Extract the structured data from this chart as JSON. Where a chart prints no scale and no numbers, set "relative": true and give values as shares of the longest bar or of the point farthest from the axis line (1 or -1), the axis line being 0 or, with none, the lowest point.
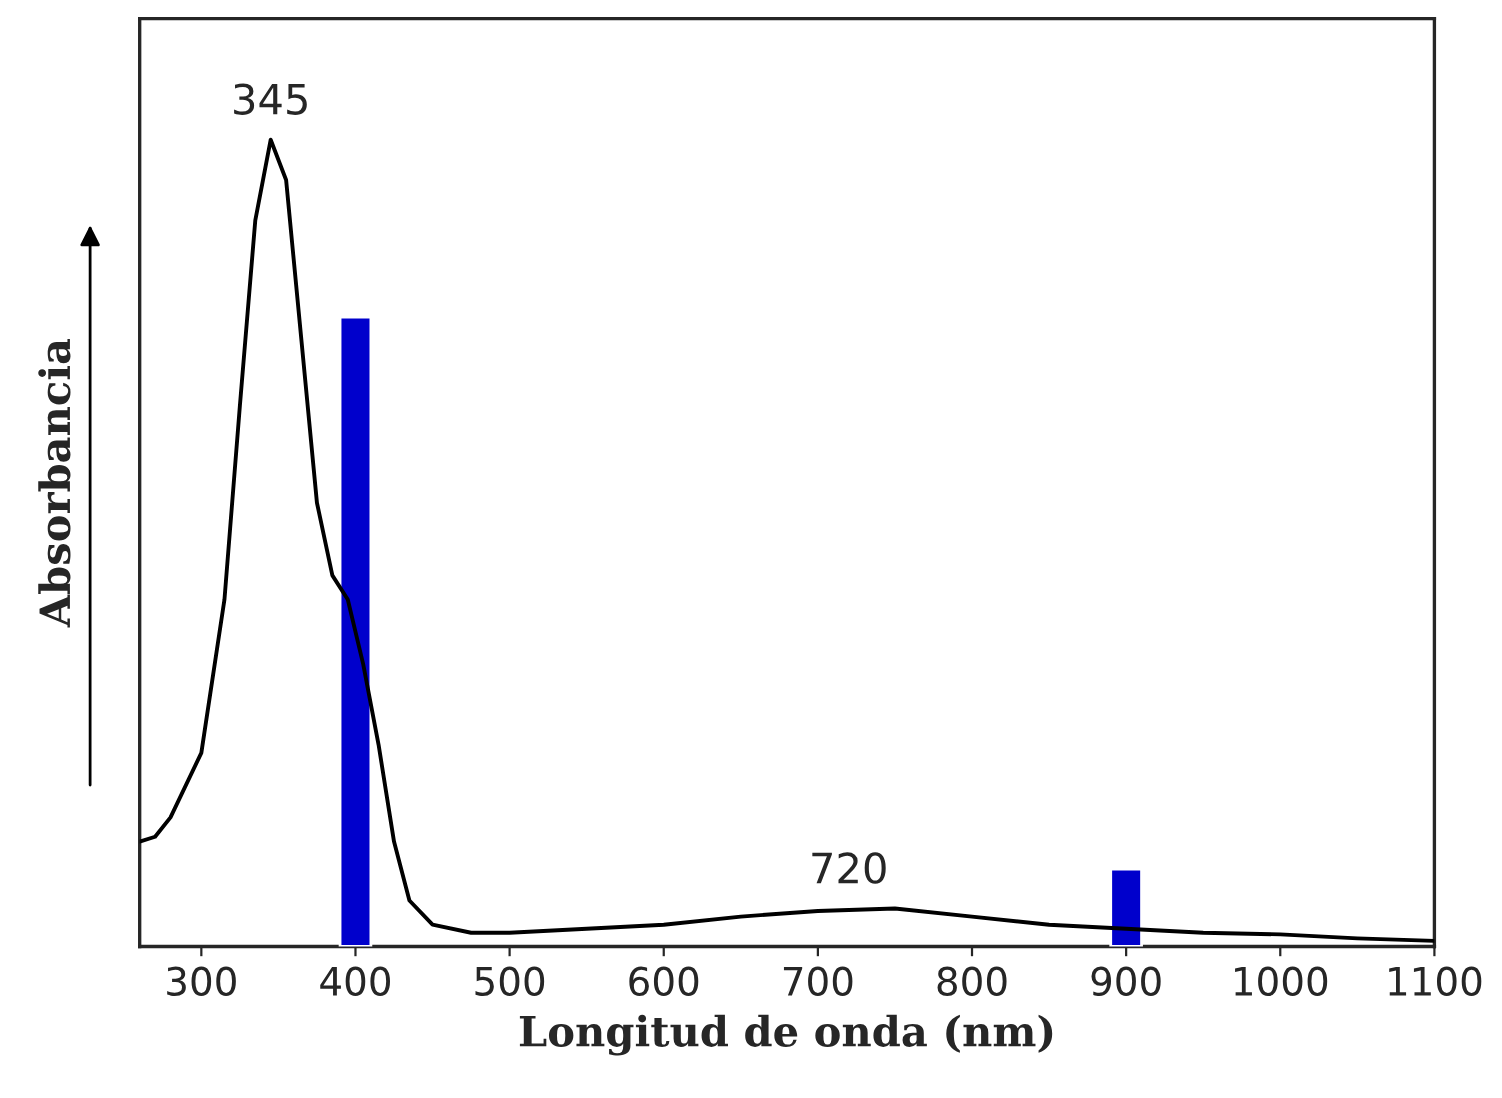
{
  "chart_data": {
    "type": "line",
    "relative": true,
    "xlabel": "Longitud de onda (nm)",
    "ylabel": "Absorbancia",
    "xlim": [
      260,
      1100
    ],
    "xticks": [
      300,
      400,
      500,
      600,
      700,
      800,
      900,
      1000,
      1100
    ],
    "tick_labels": "x",
    "grid": false,
    "series": [
      {
        "color": "#000000",
        "x": [
          260,
          270,
          280,
          300,
          315,
          325,
          335,
          345,
          355,
          365,
          375,
          385,
          395,
          405,
          415,
          425,
          435,
          450,
          475,
          500,
          550,
          600,
          650,
          700,
          750,
          800,
          850,
          900,
          950,
          1000,
          1050,
          1100
        ],
        "values": [
          0.13,
          0.136,
          0.16,
          0.24,
          0.43,
          0.67,
          0.9,
          1.0,
          0.95,
          0.75,
          0.55,
          0.46,
          0.43,
          0.35,
          0.25,
          0.13,
          0.057,
          0.027,
          0.017,
          0.017,
          0.022,
          0.027,
          0.037,
          0.044,
          0.047,
          0.037,
          0.027,
          0.022,
          0.017,
          0.015,
          0.01,
          0.007
        ]
      },
      {
        "type": "bar",
        "color": "#0000cc",
        "x": [
          400,
          900
        ],
        "values": [
          0.78,
          0.096
        ]
      }
    ],
    "annotations": [
      {
        "text": "345",
        "x": 345,
        "y": 1.0
      },
      {
        "text": "720",
        "x": 720,
        "y": 0.047
      }
    ]
  }
}
